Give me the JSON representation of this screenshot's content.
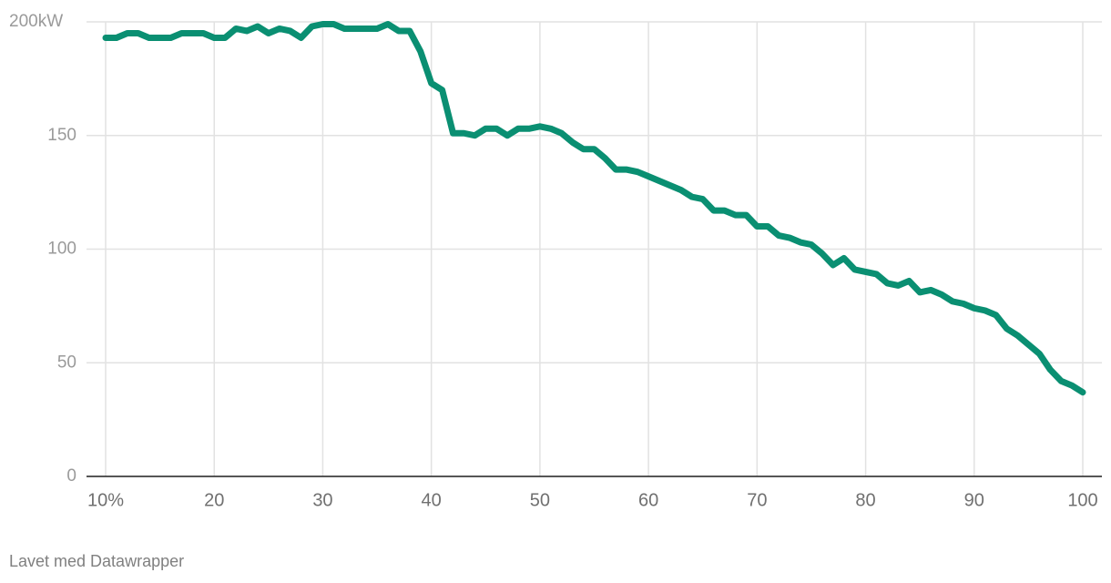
{
  "chart_data": {
    "type": "line",
    "x": [
      10,
      11,
      12,
      13,
      14,
      15,
      16,
      17,
      18,
      19,
      20,
      21,
      22,
      23,
      24,
      25,
      26,
      27,
      28,
      29,
      30,
      31,
      32,
      33,
      34,
      35,
      36,
      37,
      38,
      39,
      40,
      41,
      42,
      43,
      44,
      45,
      46,
      47,
      48,
      49,
      50,
      51,
      52,
      53,
      54,
      55,
      56,
      57,
      58,
      59,
      60,
      61,
      62,
      63,
      64,
      65,
      66,
      67,
      68,
      69,
      70,
      71,
      72,
      73,
      74,
      75,
      76,
      77,
      78,
      79,
      80,
      81,
      82,
      83,
      84,
      85,
      86,
      87,
      88,
      89,
      90,
      91,
      92,
      93,
      94,
      95,
      96,
      97,
      98,
      99,
      100
    ],
    "series": [
      {
        "color": "#0a8f72",
        "values": [
          193,
          193,
          195,
          195,
          193,
          193,
          193,
          195,
          195,
          195,
          193,
          193,
          197,
          196,
          198,
          195,
          197,
          196,
          193,
          198,
          199,
          199,
          197,
          197,
          197,
          197,
          199,
          196,
          196,
          187,
          173,
          170,
          151,
          151,
          150,
          153,
          153,
          150,
          153,
          153,
          154,
          153,
          151,
          147,
          144,
          144,
          140,
          135,
          135,
          134,
          132,
          130,
          128,
          126,
          123,
          122,
          117,
          117,
          115,
          115,
          110,
          110,
          106,
          105,
          103,
          102,
          98,
          93,
          96,
          91,
          90,
          89,
          85,
          84,
          86,
          81,
          82,
          80,
          77,
          76,
          74,
          73,
          71,
          65,
          62,
          58,
          54,
          47,
          42,
          40,
          37
        ]
      }
    ],
    "xlim": [
      10,
      100
    ],
    "xticks": [
      {
        "value": 10,
        "label": "10%"
      },
      20,
      30,
      40,
      50,
      60,
      70,
      80,
      90,
      100
    ],
    "ylim": [
      0,
      200
    ],
    "yticks": [
      0,
      50,
      100,
      150,
      {
        "value": 200,
        "label": "200kW"
      }
    ],
    "grid": true,
    "source": "Lavet med Datawrapper"
  }
}
